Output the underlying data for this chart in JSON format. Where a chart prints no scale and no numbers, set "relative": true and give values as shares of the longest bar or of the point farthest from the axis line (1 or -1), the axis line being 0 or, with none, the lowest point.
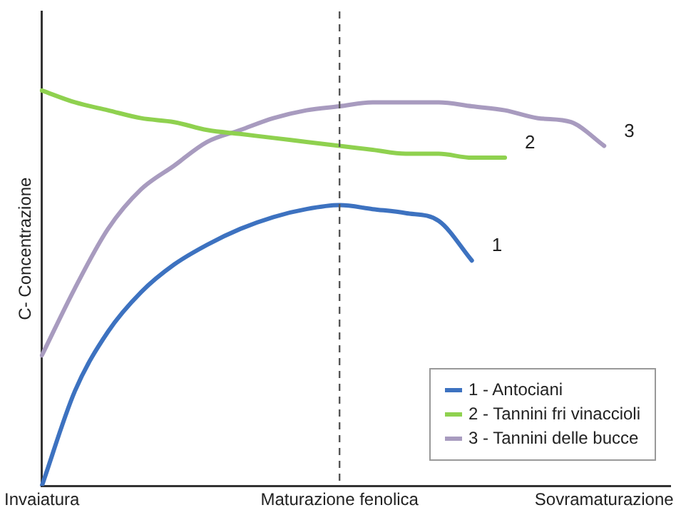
{
  "chart_data": {
    "type": "line",
    "relative": true,
    "ylabel": "C- Concentrazione",
    "categories": [
      "Invaiatura",
      null,
      null,
      null,
      null,
      null,
      null,
      null,
      null,
      "Maturazione fenolica",
      null,
      null,
      null,
      null,
      null,
      null,
      null,
      "Sovramaturazione",
      null,
      null
    ],
    "tick_labels": "x",
    "grid": false,
    "legend": "bottom right",
    "marker": "none",
    "line_style": "solid",
    "series": [
      {
        "name": "1 - Antociani",
        "color": "#3d72c0",
        "values": [
          0,
          0.24,
          0.39,
          0.49,
          0.56,
          0.61,
          0.65,
          0.68,
          0.7,
          0.71,
          0.7,
          0.69,
          0.67,
          0.57,
          null,
          null,
          null,
          null,
          null,
          null
        ]
      },
      {
        "name": "2 - Tannini fri vinaccioli",
        "color": "#8fd14f",
        "values": [
          1,
          0.97,
          0.95,
          0.93,
          0.92,
          0.9,
          0.89,
          0.88,
          0.87,
          0.86,
          0.85,
          0.84,
          0.84,
          0.83,
          0.83,
          null,
          null,
          null,
          null,
          null
        ]
      },
      {
        "name": "3 - Tannini delle bucce",
        "color": "#a89bbf",
        "values": [
          0.33,
          0.5,
          0.65,
          0.75,
          0.81,
          0.87,
          0.9,
          0.93,
          0.95,
          0.96,
          0.97,
          0.97,
          0.97,
          0.96,
          0.95,
          0.93,
          0.92,
          0.86,
          null,
          null
        ]
      }
    ],
    "ref_lines": [
      {
        "axis": "x",
        "value": "Maturazione fenolica",
        "color": "#555555",
        "line_style": "dashed"
      }
    ],
    "annotations": [
      "1",
      "2",
      "3"
    ]
  }
}
